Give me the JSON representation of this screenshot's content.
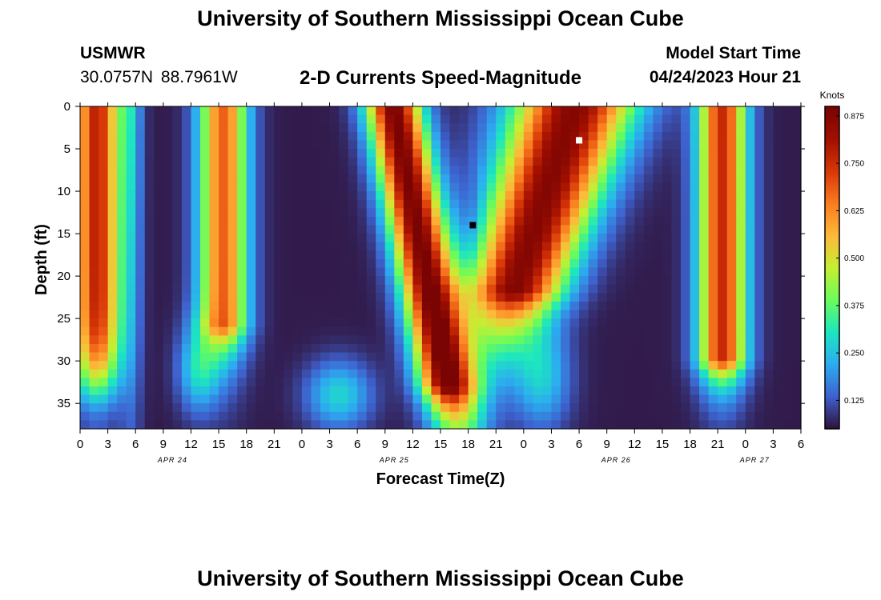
{
  "header": {
    "title": "University of Southern Mississippi Ocean Cube",
    "station": "USMWR",
    "coords": "30.0757N  88.7961W",
    "subtitle": "2-D Currents Speed-Magnitude",
    "start_label": "Model Start Time",
    "start_value": "04/24/2023 Hour 21"
  },
  "footer": {
    "title": "University of Southern Mississippi Ocean Cube"
  },
  "chart_data": {
    "type": "heatmap",
    "xlabel": "Forecast Time(Z)",
    "ylabel": "Depth (ft)",
    "x_range_hours": [
      0,
      78
    ],
    "y_range_ft": [
      0,
      38
    ],
    "y_inverted": true,
    "x_tick_labels": [
      "0",
      "3",
      "6",
      "9",
      "12",
      "15",
      "18",
      "21",
      "0",
      "3",
      "6",
      "9",
      "12",
      "15",
      "18",
      "21",
      "0",
      "3",
      "6",
      "9",
      "12",
      "15",
      "18",
      "21",
      "0",
      "3",
      "6"
    ],
    "date_labels": [
      {
        "label": "APR 24",
        "hour": 10
      },
      {
        "label": "APR 25",
        "hour": 34
      },
      {
        "label": "APR 26",
        "hour": 58
      },
      {
        "label": "APR 27",
        "hour": 73
      }
    ],
    "y_ticks": [
      0,
      5,
      10,
      15,
      20,
      25,
      30,
      35
    ],
    "colorbar": {
      "title": "Knots",
      "min": 0.05,
      "max": 0.9,
      "ticks": [
        "0.125",
        "0.250",
        "0.375",
        "0.500",
        "0.625",
        "0.750",
        "0.875"
      ],
      "colors": [
        "#30123b",
        "#3e62cf",
        "#2cacf0",
        "#1ce6c0",
        "#6bfb5b",
        "#c5ef33",
        "#fcba3a",
        "#fa7d20",
        "#d93808",
        "#a31001",
        "#7a0403"
      ]
    },
    "markers": [
      {
        "hour": 42.5,
        "depth_ft": 14,
        "color": "#000000"
      },
      {
        "hour": 54,
        "depth_ft": 4,
        "color": "#ffffff"
      }
    ]
  }
}
